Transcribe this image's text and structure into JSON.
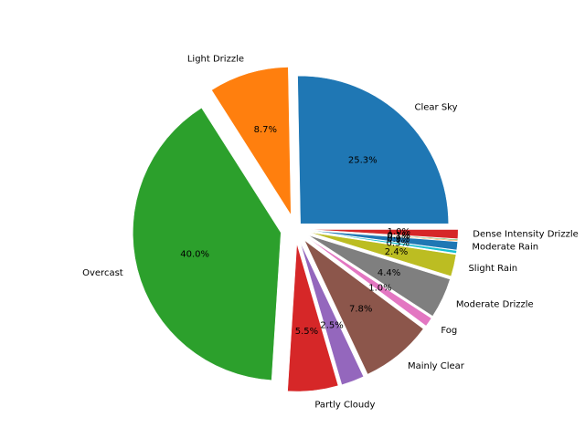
{
  "chart_data": {
    "type": "pie",
    "title": "",
    "start_angle_deg": 0,
    "direction": "counterclockwise",
    "slices": [
      {
        "label": "Clear Sky",
        "value": 25.3,
        "pct_label": "25.3%",
        "color": "#1f77b4",
        "explode": 0.05
      },
      {
        "label": "Light Drizzle",
        "value": 8.7,
        "pct_label": "8.7%",
        "color": "#ff7f0e",
        "explode": 0.1
      },
      {
        "label": "Overcast",
        "value": 40.0,
        "pct_label": "40.0%",
        "color": "#2ca02c",
        "explode": 0.1
      },
      {
        "label": "Partly Cloudy",
        "value": 5.5,
        "pct_label": "5.5%",
        "color": "#d62728",
        "explode": 0.1
      },
      {
        "label": "",
        "value": 2.5,
        "pct_label": "2.5%",
        "color": "#9467bd",
        "explode": 0.1
      },
      {
        "label": "Mainly Clear",
        "value": 7.8,
        "pct_label": "7.8%",
        "color": "#8c564b",
        "explode": 0.1
      },
      {
        "label": "Fog",
        "value": 1.0,
        "pct_label": "1.0%",
        "color": "#e377c2",
        "explode": 0.1
      },
      {
        "label": "Moderate Drizzle",
        "value": 4.4,
        "pct_label": "4.4%",
        "color": "#7f7f7f",
        "explode": 0.1
      },
      {
        "label": "Slight Rain",
        "value": 2.4,
        "pct_label": "2.4%",
        "color": "#bcbd22",
        "explode": 0.1
      },
      {
        "label": "",
        "value": 0.3,
        "pct_label": "0.3%",
        "color": "#17becf",
        "explode": 0.1
      },
      {
        "label": "Moderate Rain",
        "value": 0.9,
        "pct_label": "0.9%",
        "color": "#1f77b4",
        "explode": 0.1
      },
      {
        "label": "",
        "value": 0.1,
        "pct_label": "0.1%",
        "color": "#ff7f0e",
        "explode": 0.1
      },
      {
        "label": "",
        "value": 0.1,
        "pct_label": "0.1%",
        "color": "#2ca02c",
        "explode": 0.1
      },
      {
        "label": "Dense Intensity Drizzle",
        "value": 1.0,
        "pct_label": "1.0%",
        "color": "#d62728",
        "explode": 0.1
      }
    ]
  }
}
